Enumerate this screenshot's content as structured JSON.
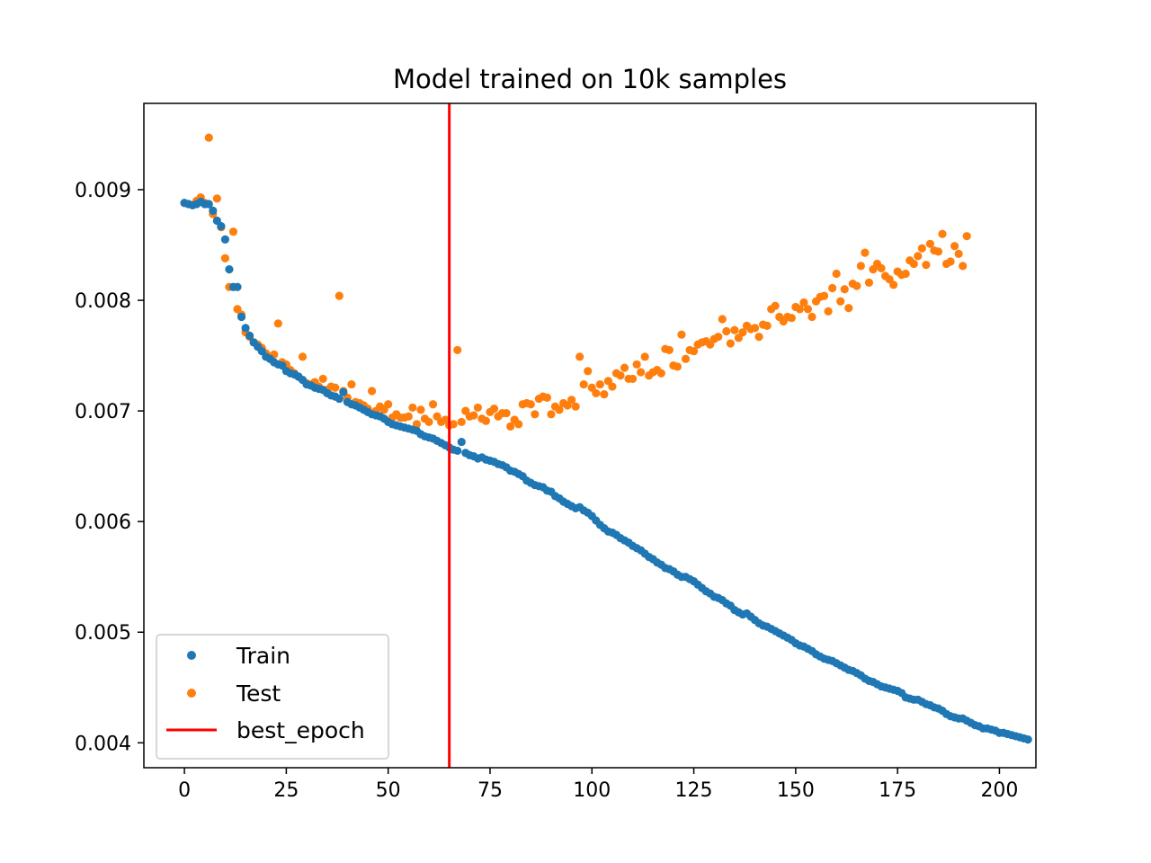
{
  "chart_data": {
    "type": "scatter",
    "title": "Model trained on 10k samples",
    "xlabel": "",
    "ylabel": "",
    "xlim": [
      -9.95,
      208.95
    ],
    "ylim": [
      0.003775,
      0.00978
    ],
    "x_ticks": [
      0,
      25,
      50,
      75,
      100,
      125,
      150,
      175,
      200
    ],
    "y_ticks": [
      0.004,
      0.005,
      0.006,
      0.007,
      0.008,
      0.009
    ],
    "x_tick_labels": [
      "0",
      "25",
      "50",
      "75",
      "100",
      "125",
      "150",
      "175",
      "200"
    ],
    "y_tick_labels": [
      "0.004",
      "0.005",
      "0.006",
      "0.007",
      "0.008",
      "0.009"
    ],
    "grid": false,
    "legend_position": "lower-left",
    "legend": [
      "Train",
      "Test",
      "best_epoch"
    ],
    "best_epoch": 65,
    "colors": {
      "train": "#1f77b4",
      "test": "#ff7f0e",
      "best_epoch": "#ff0000"
    },
    "series": [
      {
        "name": "Train",
        "x_start": 0,
        "values": [
          0.00888,
          0.00887,
          0.00886,
          0.00887,
          0.00889,
          0.00887,
          0.00887,
          0.00881,
          0.00872,
          0.00867,
          0.00855,
          0.00828,
          0.00812,
          0.00812,
          0.00785,
          0.00775,
          0.00768,
          0.00762,
          0.00758,
          0.00754,
          0.00749,
          0.00747,
          0.00744,
          0.00742,
          0.00741,
          0.00736,
          0.00734,
          0.00733,
          0.00731,
          0.00728,
          0.00724,
          0.00723,
          0.00721,
          0.0072,
          0.00719,
          0.00716,
          0.00714,
          0.00713,
          0.00711,
          0.00717,
          0.00708,
          0.00706,
          0.00705,
          0.00703,
          0.00701,
          0.00699,
          0.00697,
          0.00696,
          0.00695,
          0.00693,
          0.0069,
          0.00688,
          0.00687,
          0.00686,
          0.00685,
          0.00684,
          0.00683,
          0.00682,
          0.00679,
          0.00677,
          0.00676,
          0.00675,
          0.00673,
          0.00671,
          0.00669,
          0.00667,
          0.00665,
          0.00664,
          0.00672,
          0.00662,
          0.0066,
          0.00659,
          0.00657,
          0.00658,
          0.00656,
          0.00655,
          0.00654,
          0.00652,
          0.00651,
          0.00649,
          0.00646,
          0.00645,
          0.00643,
          0.00641,
          0.00637,
          0.00635,
          0.00633,
          0.00632,
          0.00631,
          0.00628,
          0.00627,
          0.00623,
          0.00621,
          0.00618,
          0.00616,
          0.00614,
          0.00612,
          0.00613,
          0.0061,
          0.00608,
          0.00605,
          0.00601,
          0.00597,
          0.00594,
          0.00591,
          0.0059,
          0.00588,
          0.00585,
          0.00583,
          0.00581,
          0.00578,
          0.00576,
          0.00574,
          0.00571,
          0.00568,
          0.00566,
          0.00563,
          0.00561,
          0.00558,
          0.00557,
          0.00555,
          0.00552,
          0.0055,
          0.0055,
          0.00548,
          0.00546,
          0.00543,
          0.0054,
          0.00537,
          0.00535,
          0.00532,
          0.00531,
          0.00529,
          0.00526,
          0.00524,
          0.0052,
          0.00518,
          0.00516,
          0.00517,
          0.00514,
          0.00511,
          0.00508,
          0.00506,
          0.00505,
          0.00503,
          0.00501,
          0.00499,
          0.00497,
          0.00495,
          0.00493,
          0.0049,
          0.00488,
          0.00487,
          0.00485,
          0.00483,
          0.0048,
          0.00478,
          0.00476,
          0.00475,
          0.00474,
          0.00472,
          0.0047,
          0.00468,
          0.00466,
          0.00465,
          0.00463,
          0.00461,
          0.00458,
          0.00456,
          0.00455,
          0.00453,
          0.00451,
          0.0045,
          0.00449,
          0.00448,
          0.00447,
          0.00445,
          0.00441,
          0.0044,
          0.00439,
          0.00439,
          0.00437,
          0.00435,
          0.00434,
          0.00432,
          0.00431,
          0.00429,
          0.00426,
          0.00424,
          0.00423,
          0.00422,
          0.00422,
          0.0042,
          0.00418,
          0.00416,
          0.00415,
          0.00413,
          0.00413,
          0.00412,
          0.00411,
          0.00409,
          0.00409,
          0.00408,
          0.00407,
          0.00406,
          0.00405,
          0.00404,
          0.00403
        ]
      },
      {
        "name": "Test",
        "x_start": 0,
        "values": [
          0.00888,
          0.00887,
          0.00886,
          0.0089,
          0.00893,
          0.00888,
          0.00947,
          0.00878,
          0.00892,
          0.00866,
          0.00838,
          0.00812,
          0.00862,
          0.00792,
          0.00787,
          0.00771,
          0.00767,
          0.00762,
          0.0076,
          0.00757,
          0.00752,
          0.00749,
          0.00751,
          0.00779,
          0.00744,
          0.00742,
          0.00737,
          0.00734,
          0.00731,
          0.00749,
          0.00725,
          0.00724,
          0.00726,
          0.00722,
          0.00729,
          0.00719,
          0.00722,
          0.00721,
          0.00804,
          0.00718,
          0.00712,
          0.00724,
          0.00708,
          0.00707,
          0.00705,
          0.00702,
          0.00718,
          0.007,
          0.00704,
          0.00701,
          0.00706,
          0.00694,
          0.00697,
          0.00694,
          0.00694,
          0.00695,
          0.00703,
          0.00688,
          0.00701,
          0.00693,
          0.0069,
          0.00706,
          0.00695,
          0.0069,
          0.00692,
          0.00687,
          0.00688,
          0.00755,
          0.0069,
          0.007,
          0.00695,
          0.00696,
          0.00703,
          0.00693,
          0.00691,
          0.00699,
          0.00702,
          0.00695,
          0.00698,
          0.00698,
          0.00686,
          0.00692,
          0.00688,
          0.00706,
          0.00707,
          0.00706,
          0.00697,
          0.00711,
          0.00713,
          0.00712,
          0.00697,
          0.00704,
          0.00701,
          0.00707,
          0.00705,
          0.0071,
          0.00704,
          0.00749,
          0.00724,
          0.00736,
          0.00721,
          0.00716,
          0.00724,
          0.00715,
          0.00727,
          0.00722,
          0.00734,
          0.00732,
          0.00739,
          0.00729,
          0.00729,
          0.00742,
          0.00735,
          0.00749,
          0.00732,
          0.00735,
          0.00737,
          0.00734,
          0.00756,
          0.00755,
          0.00741,
          0.0074,
          0.00769,
          0.00747,
          0.00755,
          0.00754,
          0.0076,
          0.00762,
          0.00763,
          0.0076,
          0.00765,
          0.00767,
          0.00783,
          0.00772,
          0.00761,
          0.00773,
          0.00766,
          0.00771,
          0.00777,
          0.00774,
          0.00775,
          0.00767,
          0.00778,
          0.00777,
          0.00792,
          0.00795,
          0.00785,
          0.00781,
          0.00785,
          0.00784,
          0.00794,
          0.00792,
          0.00798,
          0.00792,
          0.00785,
          0.00799,
          0.00803,
          0.00804,
          0.0079,
          0.00811,
          0.00824,
          0.00799,
          0.0081,
          0.00793,
          0.00815,
          0.00813,
          0.00831,
          0.00843,
          0.00816,
          0.00828,
          0.00833,
          0.00829,
          0.00822,
          0.00819,
          0.00814,
          0.00826,
          0.00823,
          0.00824,
          0.00836,
          0.00833,
          0.0084,
          0.00847,
          0.00832,
          0.00851,
          0.00845,
          0.00844,
          0.0086,
          0.00833,
          0.00835,
          0.00849,
          0.00842,
          0.00831,
          0.00858
        ]
      }
    ]
  }
}
